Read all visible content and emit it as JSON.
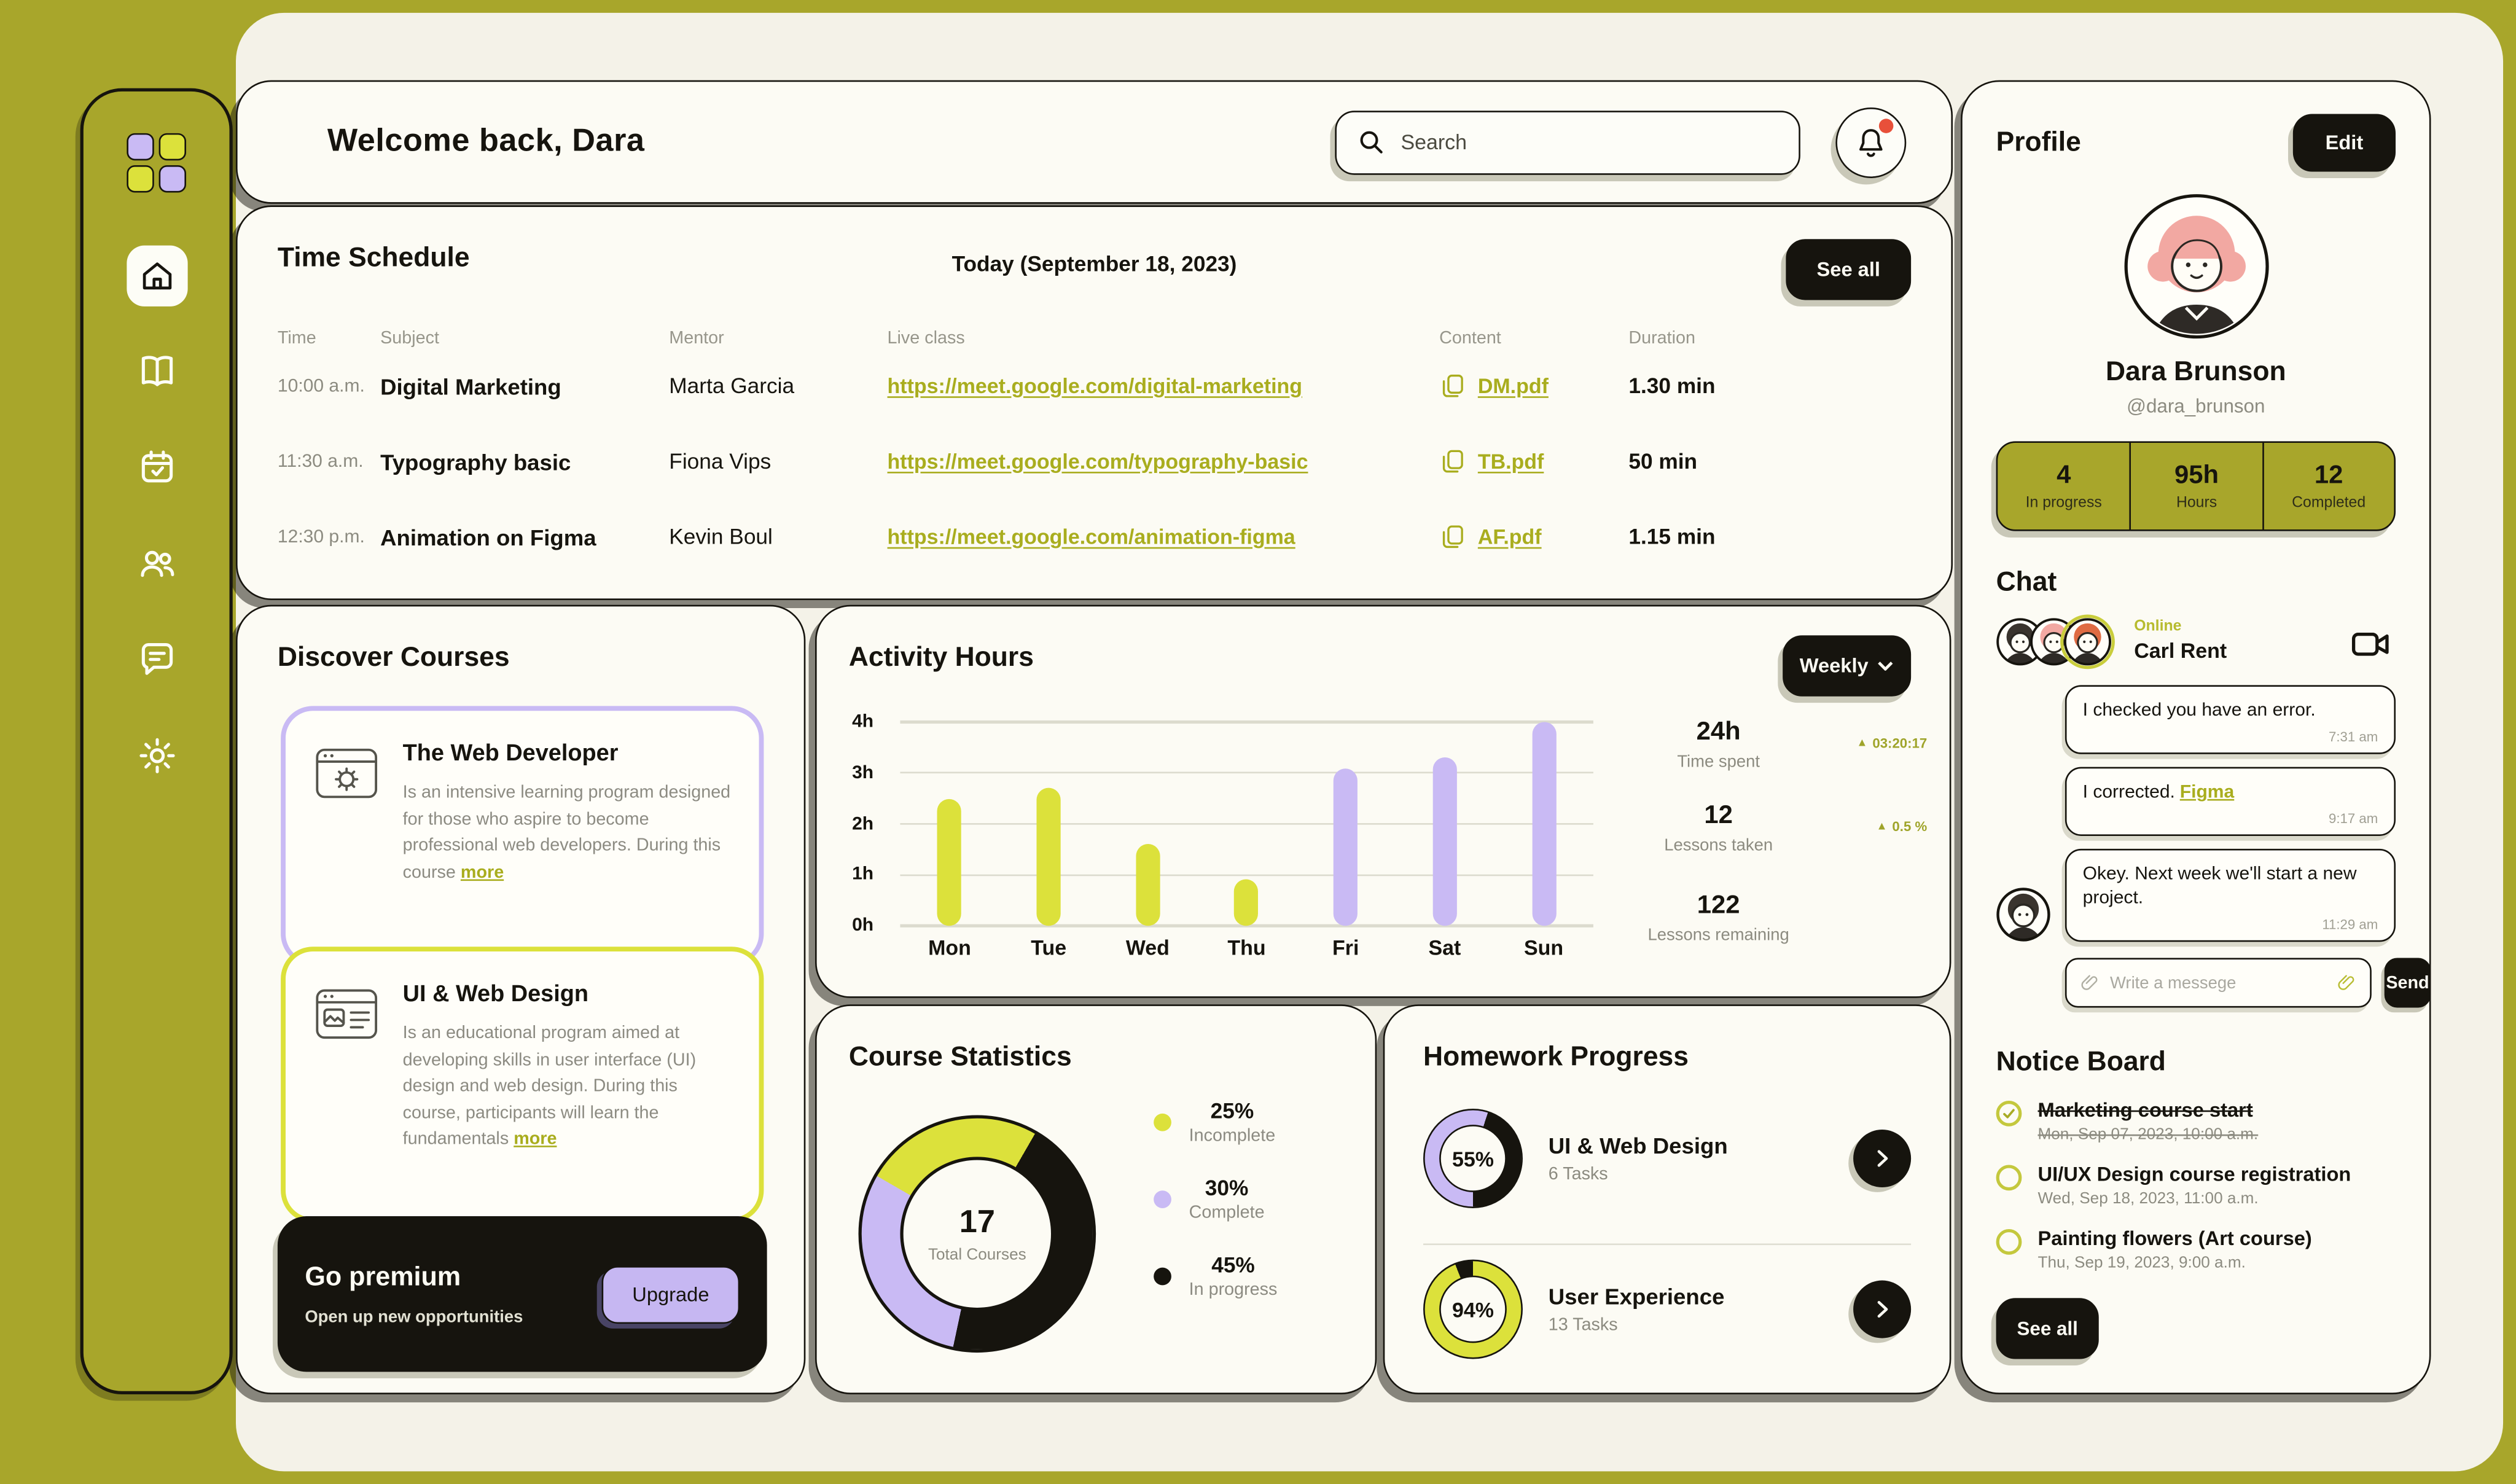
{
  "colors": {
    "olive": "#A8A62B",
    "yellow": "#DCE13B",
    "purple": "#C9BAF4",
    "dark": "#16140E",
    "cream": "#F4F2E8",
    "link": "#A9AD1E",
    "red": "#E8503A"
  },
  "sidebar": {
    "icons": [
      "home-icon",
      "book-icon",
      "calendar-icon",
      "users-icon",
      "chat-icon",
      "settings-icon"
    ],
    "active": "home"
  },
  "header": {
    "title": "Welcome back, Dara",
    "search_placeholder": "Search"
  },
  "schedule": {
    "title": "Time Schedule",
    "today": "Today (September 18, 2023)",
    "see_all": "See all",
    "columns": [
      "Time",
      "Subject",
      "Mentor",
      "Live class",
      "Content",
      "Duration"
    ],
    "rows": [
      {
        "time": "10:00 a.m.",
        "subject": "Digital Marketing",
        "mentor": "Marta Garcia",
        "link": "https://meet.google.com/digital-marketing",
        "content": "DM.pdf",
        "duration": "1.30 min"
      },
      {
        "time": "11:30 a.m.",
        "subject": "Typography basic",
        "mentor": "Fiona Vips",
        "link": "https://meet.google.com/typography-basic",
        "content": "TB.pdf",
        "duration": "50 min"
      },
      {
        "time": "12:30 p.m.",
        "subject": "Animation on Figma",
        "mentor": "Kevin Boul",
        "link": "https://meet.google.com/animation-figma",
        "content": "AF.pdf",
        "duration": "1.15 min"
      }
    ]
  },
  "discover": {
    "title": "Discover Courses",
    "courses": [
      {
        "name": "The Web Developer",
        "description": "Is an intensive learning program designed for those who aspire to become professional web developers. During this course ",
        "more": "more",
        "accent": "#C9BAF4"
      },
      {
        "name": "UI & Web Design",
        "description": "Is an educational program aimed at developing skills in user interface (UI) design and web design. During this course, participants will learn the fundamentals ",
        "more": "more",
        "accent": "#DCE13B"
      }
    ],
    "premium": {
      "title": "Go premium",
      "subtitle": "Open up new opportunities",
      "button": "Upgrade"
    }
  },
  "activity": {
    "title": "Activity Hours",
    "range_label": "Weekly",
    "chart": {
      "type": "bar",
      "categories": [
        "Mon",
        "Tue",
        "Wed",
        "Thu",
        "Fri",
        "Sat",
        "Sun"
      ],
      "values": [
        2.5,
        2.7,
        1.6,
        0.9,
        3.1,
        3.3,
        4.0
      ],
      "yticks": [
        "4h",
        "3h",
        "2h",
        "1h",
        "0h"
      ],
      "ylim": [
        0,
        4
      ],
      "bar_colors": [
        "#DCE13B",
        "#DCE13B",
        "#DCE13B",
        "#DCE13B",
        "#C9BAF4",
        "#C9BAF4",
        "#C9BAF4"
      ]
    },
    "stats": [
      {
        "value": "24h",
        "label": "Time spent",
        "delta": "03:20:17"
      },
      {
        "value": "12",
        "label": "Lessons taken",
        "delta": "0.5 %"
      },
      {
        "value": "122",
        "label": "Lessons remaining",
        "delta": ""
      }
    ]
  },
  "course_stats": {
    "title": "Course Statistics",
    "center_value": "17",
    "center_label": "Total Courses",
    "start_deg": 300,
    "segments": [
      {
        "pct": 25,
        "color": "#DCE13B"
      },
      {
        "pct": 45,
        "color": "#16140E"
      },
      {
        "pct": 30,
        "color": "#C9BAF4"
      }
    ],
    "legend": [
      {
        "pct": "25%",
        "label": "Incomplete",
        "color": "#DCE13B"
      },
      {
        "pct": "30%",
        "label": "Complete",
        "color": "#C9BAF4"
      },
      {
        "pct": "45%",
        "label": "In progress",
        "color": "#16140E"
      }
    ]
  },
  "homework": {
    "title": "Homework Progress",
    "items": [
      {
        "pct": "55%",
        "name": "UI & Web Design",
        "tasks": "6 Tasks",
        "color": "#C9BAF4"
      },
      {
        "pct": "94%",
        "name": "User Experience",
        "tasks": "13 Tasks",
        "color": "#DCE13B"
      }
    ]
  },
  "profile": {
    "title": "Profile",
    "edit": "Edit",
    "name": "Dara Brunson",
    "handle": "@dara_brunson",
    "stats": [
      {
        "value": "4",
        "label": "In progress"
      },
      {
        "value": "95h",
        "label": "Hours"
      },
      {
        "value": "12",
        "label": "Completed"
      }
    ]
  },
  "chat": {
    "title": "Chat",
    "status": "Online",
    "contact": "Carl Rent",
    "messages": [
      {
        "text": "I checked you have an error.",
        "time": "7:31 am"
      },
      {
        "text": "I corrected.",
        "link": "Figma",
        "time": "9:17 am"
      },
      {
        "text": "Okey. Next week we'll start a new project.",
        "time": "11:29 am"
      }
    ],
    "input_placeholder": "Write a messege",
    "send": "Send"
  },
  "notice": {
    "title": "Notice Board",
    "items": [
      {
        "title": "Marketing course start",
        "date": "Mon, Sep 07, 2023, 10:00 a.m.",
        "done": true
      },
      {
        "title": "UI/UX Design course registration",
        "date": "Wed, Sep 18, 2023, 11:00 a.m.",
        "done": false
      },
      {
        "title": "Painting flowers (Art course)",
        "date": "Thu, Sep 19, 2023, 9:00 a.m.",
        "done": false
      }
    ],
    "see_all": "See all"
  }
}
